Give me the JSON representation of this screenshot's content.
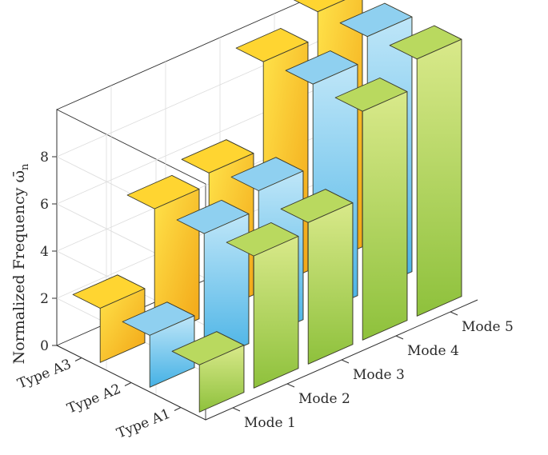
{
  "chart_data": {
    "type": "bar",
    "variant": "3d-grouped",
    "title": "",
    "xlabel": "",
    "ylabel": "Normalized Frequency ω̄",
    "ylabel_subscript": "n",
    "zlim": [
      0,
      10
    ],
    "z_ticks": [
      "0",
      "2",
      "4",
      "6",
      "8"
    ],
    "grid": true,
    "modes": [
      "Mode 1",
      "Mode 2",
      "Mode 3",
      "Mode 4",
      "Mode 5"
    ],
    "types": [
      "Type A1",
      "Type A2",
      "Type A3"
    ],
    "series": [
      {
        "name": "Type A1",
        "color": "#9cc94a",
        "values": [
          2.0,
          5.6,
          6.0,
          9.7,
          10.9
        ]
      },
      {
        "name": "Type A2",
        "color": "#7cc8ec",
        "values": [
          2.2,
          5.5,
          6.3,
          9.8,
          10.8
        ]
      },
      {
        "name": "Type A3",
        "color": "#f7c21a",
        "values": [
          2.3,
          5.5,
          6.0,
          9.7,
          10.8
        ]
      }
    ]
  }
}
